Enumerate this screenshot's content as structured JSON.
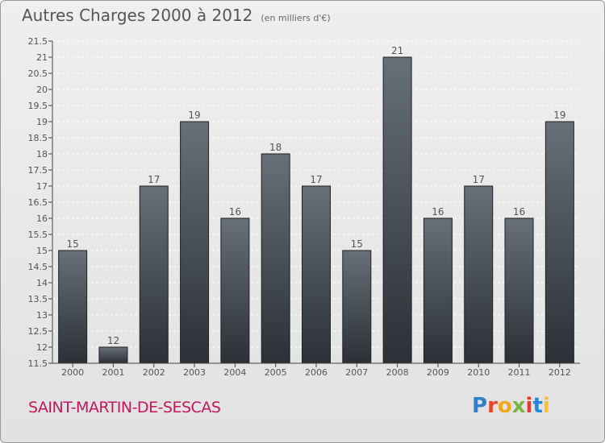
{
  "header": {
    "title": "Autres Charges 2000 à 2012",
    "subtitle": "(en milliers d'€)"
  },
  "footer": {
    "town": "SAINT-MARTIN-DE-SESCAS",
    "logo": "Proxiti"
  },
  "colors": {
    "bar_top": "#676f78",
    "bar_bottom": "#2b3036",
    "grid": "#ffffff",
    "text": "#555555",
    "town": "#c2185b"
  },
  "chart_data": {
    "type": "bar",
    "title": "Autres Charges 2000 à 2012",
    "subtitle": "(en milliers d'€)",
    "categories": [
      "2000",
      "2001",
      "2002",
      "2003",
      "2004",
      "2005",
      "2006",
      "2007",
      "2008",
      "2009",
      "2010",
      "2011",
      "2012"
    ],
    "values": [
      15,
      12,
      17,
      19,
      16,
      18,
      17,
      15,
      21,
      16,
      17,
      16,
      19
    ],
    "ylim": [
      11.5,
      21.5
    ],
    "yticks": [
      "11.5",
      "12",
      "12.5",
      "13",
      "13.5",
      "14",
      "14.5",
      "15",
      "15.5",
      "16",
      "16.5",
      "17",
      "17.5",
      "18",
      "18.5",
      "19",
      "19.5",
      "20",
      "20.5",
      "21",
      "21.5"
    ],
    "grid": true,
    "data_labels": true
  }
}
